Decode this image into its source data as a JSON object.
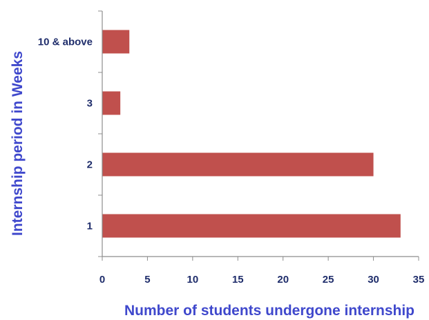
{
  "chart_data": {
    "type": "bar",
    "orientation": "horizontal",
    "categories": [
      "1",
      "2",
      "3",
      "10 & above"
    ],
    "values": [
      33,
      30,
      2,
      3
    ],
    "xlabel": "Number of students undergone internship",
    "ylabel": "Internship period in Weeks",
    "xlim": [
      0,
      35
    ],
    "xticks": [
      0,
      5,
      10,
      15,
      20,
      25,
      30,
      35
    ],
    "grid": false,
    "legend": "none",
    "colors": {
      "bar": "#c0504d",
      "axis_title": "#3f48cc",
      "tick_labels": "#1f2d6b",
      "axis_line": "#8c8c8c"
    }
  }
}
